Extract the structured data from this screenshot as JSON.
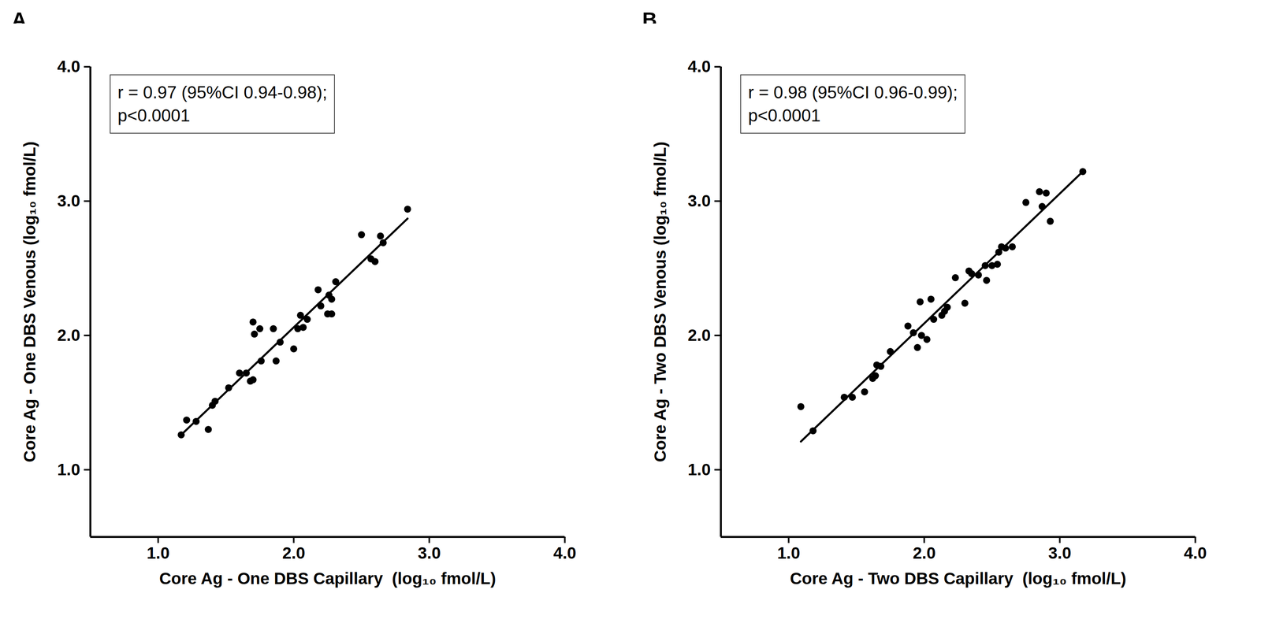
{
  "chart_data": [
    {
      "type": "scatter",
      "title": "A",
      "annotation": [
        "r = 0.97 (95%CI 0.94-0.98);",
        "p<0.0001"
      ],
      "x_label": "Core Ag - One DBS Capillary  (log₁₀ fmol/L)",
      "y_label": "Core Ag - One DBS Venous (log₁₀ fmol/L)",
      "x": [
        1.17,
        1.21,
        1.28,
        1.37,
        1.4,
        1.42,
        1.52,
        1.6,
        1.65,
        1.7,
        1.68,
        1.7,
        1.71,
        1.75,
        1.76,
        1.85,
        1.87,
        1.9,
        2.0,
        2.03,
        2.05,
        2.07,
        2.1,
        2.18,
        2.2,
        2.25,
        2.28,
        2.28,
        2.31,
        2.26,
        2.5,
        2.57,
        2.6,
        2.64,
        2.66,
        2.84
      ],
      "y": [
        1.26,
        1.37,
        1.36,
        1.3,
        1.48,
        1.51,
        1.61,
        1.72,
        1.72,
        1.67,
        1.66,
        2.1,
        2.01,
        2.05,
        1.81,
        2.05,
        1.81,
        1.95,
        1.9,
        2.05,
        2.15,
        2.06,
        2.12,
        2.34,
        2.22,
        2.16,
        2.16,
        2.27,
        2.4,
        2.3,
        2.75,
        2.57,
        2.55,
        2.74,
        2.69,
        2.94
      ],
      "regression": {
        "x": [
          1.17,
          2.84
        ],
        "y": [
          1.26,
          2.87
        ]
      },
      "color": "#000000",
      "xlim": [
        0.5,
        4
      ],
      "ylim": [
        0.5,
        4
      ],
      "xticks": [
        1,
        2,
        3,
        4
      ],
      "yticks": [
        1,
        2,
        3,
        4
      ],
      "grid": false
    },
    {
      "type": "scatter",
      "title": "B",
      "annotation": [
        "r = 0.98 (95%CI 0.96-0.99);",
        "p<0.0001"
      ],
      "x_label": "Core Ag - Two DBS Capillary  (log₁₀ fmol/L)",
      "y_label": "Core Ag - Two DBS Venous (log₁₀ fmol/L)",
      "x": [
        1.09,
        1.18,
        1.41,
        1.47,
        1.56,
        1.62,
        1.64,
        1.65,
        1.68,
        1.75,
        1.88,
        1.92,
        1.95,
        1.97,
        1.98,
        2.02,
        2.05,
        2.07,
        2.13,
        2.15,
        2.17,
        2.23,
        2.3,
        2.33,
        2.35,
        2.4,
        2.45,
        2.46,
        2.5,
        2.54,
        2.55,
        2.57,
        2.6,
        2.65,
        2.75,
        2.85,
        2.87,
        2.9,
        2.93,
        3.17
      ],
      "y": [
        1.47,
        1.29,
        1.54,
        1.54,
        1.58,
        1.68,
        1.7,
        1.78,
        1.77,
        1.88,
        2.07,
        2.02,
        1.91,
        2.25,
        2.0,
        1.97,
        2.27,
        2.12,
        2.15,
        2.18,
        2.21,
        2.43,
        2.24,
        2.48,
        2.46,
        2.45,
        2.52,
        2.41,
        2.52,
        2.53,
        2.62,
        2.66,
        2.65,
        2.66,
        2.99,
        3.07,
        2.96,
        3.06,
        2.85,
        3.22
      ],
      "regression": {
        "x": [
          1.09,
          3.17
        ],
        "y": [
          1.21,
          3.22
        ]
      },
      "color": "#000000",
      "xlim": [
        0.5,
        4
      ],
      "ylim": [
        0.5,
        4
      ],
      "xticks": [
        1,
        2,
        3,
        4
      ],
      "yticks": [
        1,
        2,
        3,
        4
      ],
      "grid": false
    }
  ]
}
